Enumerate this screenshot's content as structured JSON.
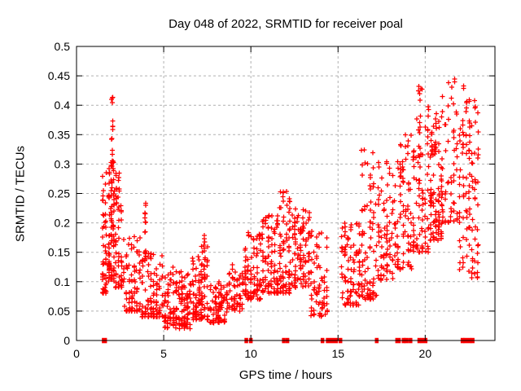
{
  "title": "Day 048 of 2022, SRMTID for receiver poal",
  "axes": {
    "xlabel": "GPS time / hours",
    "ylabel": "SRMTID / TECUs",
    "xlim": [
      0,
      24
    ],
    "ylim": [
      0,
      0.5
    ],
    "xticks": [
      0,
      5,
      10,
      15,
      20
    ],
    "xtick_labels": [
      "0",
      "5",
      "10",
      "15",
      "20"
    ],
    "yticks": [
      0,
      0.05,
      0.1,
      0.15,
      0.2,
      0.25,
      0.3,
      0.35,
      0.4,
      0.45,
      0.5
    ],
    "ytick_labels": [
      "0",
      "0.05",
      "0.1",
      "0.15",
      "0.2",
      "0.25",
      "0.3",
      "0.35",
      "0.4",
      "0.45",
      "0.5"
    ],
    "grid": true
  },
  "colors": {
    "marker": "#ff0000",
    "grid": "#b0b0b0",
    "frame": "#000000",
    "background": "#ffffff",
    "text": "#000000"
  },
  "chart_data": {
    "type": "scatter",
    "title": "Day 048 of 2022, SRMTID for receiver poal",
    "xlabel": "GPS time / hours",
    "ylabel": "SRMTID / TECUs",
    "xlim": [
      0,
      24
    ],
    "ylim": [
      0,
      0.5
    ],
    "marker": "plus",
    "marker_color": "#ff0000",
    "grid": true,
    "legend": "none",
    "seed": 48,
    "clusters_format": "[x_start_hr, x_end_hr, y_min_TECU, y_max_TECU, point_count, low_bias_power] — approximate density clusters reconstructing the ~1900 red '+' samples",
    "clusters": [
      [
        1.45,
        1.75,
        0.08,
        0.315,
        48,
        1.6
      ],
      [
        1.8,
        2.2,
        0.1,
        0.31,
        90,
        1.5
      ],
      [
        1.95,
        2.15,
        0.3,
        0.44,
        14,
        1.0
      ],
      [
        2.2,
        2.65,
        0.09,
        0.285,
        55,
        1.8
      ],
      [
        2.65,
        3.7,
        0.05,
        0.18,
        85,
        1.8
      ],
      [
        3.85,
        4.05,
        0.13,
        0.235,
        12,
        1.0
      ],
      [
        3.7,
        5.0,
        0.04,
        0.155,
        100,
        1.8
      ],
      [
        5.0,
        6.6,
        0.02,
        0.125,
        150,
        1.5
      ],
      [
        6.6,
        7.6,
        0.035,
        0.16,
        105,
        1.8
      ],
      [
        7.25,
        7.42,
        0.12,
        0.195,
        8,
        1.0
      ],
      [
        7.6,
        8.7,
        0.03,
        0.1,
        85,
        1.5
      ],
      [
        8.7,
        9.6,
        0.05,
        0.135,
        55,
        1.4
      ],
      [
        9.6,
        10.6,
        0.07,
        0.185,
        85,
        1.5
      ],
      [
        10.6,
        11.6,
        0.08,
        0.215,
        90,
        1.5
      ],
      [
        11.6,
        12.3,
        0.08,
        0.255,
        75,
        1.7
      ],
      [
        12.3,
        13.4,
        0.09,
        0.225,
        95,
        1.5
      ],
      [
        13.4,
        14.45,
        0.04,
        0.19,
        70,
        1.4
      ],
      [
        15.15,
        16.3,
        0.06,
        0.2,
        95,
        1.5
      ],
      [
        16.3,
        17.25,
        0.07,
        0.33,
        85,
        2.0
      ],
      [
        17.25,
        18.35,
        0.1,
        0.305,
        85,
        1.6
      ],
      [
        18.35,
        19.25,
        0.12,
        0.35,
        75,
        1.5
      ],
      [
        19.25,
        20.25,
        0.15,
        0.43,
        85,
        1.7
      ],
      [
        19.55,
        19.8,
        0.3,
        0.435,
        10,
        1.0
      ],
      [
        20.25,
        21.0,
        0.17,
        0.39,
        80,
        1.4
      ],
      [
        20.3,
        20.65,
        0.315,
        0.355,
        16,
        1.0
      ],
      [
        20.9,
        21.9,
        0.2,
        0.455,
        60,
        1.6
      ],
      [
        21.9,
        22.45,
        0.12,
        0.44,
        50,
        1.3
      ],
      [
        22.45,
        23.1,
        0.1,
        0.41,
        65,
        1.2
      ]
    ],
    "baseline_segments_hours": [
      [
        1.5,
        1.7
      ],
      [
        9.68,
        9.74
      ],
      [
        9.94,
        10.0
      ],
      [
        11.83,
        11.9
      ],
      [
        12.04,
        12.1
      ],
      [
        14.05,
        14.12
      ],
      [
        14.35,
        14.95
      ],
      [
        15.08,
        15.14
      ],
      [
        17.16,
        17.26
      ],
      [
        18.33,
        18.55
      ],
      [
        18.7,
        18.76
      ],
      [
        18.85,
        19.0
      ],
      [
        19.1,
        19.16
      ],
      [
        19.6,
        19.66
      ],
      [
        19.78,
        20.08
      ],
      [
        22.08,
        22.14
      ],
      [
        22.24,
        22.6
      ],
      [
        22.66,
        22.78
      ]
    ]
  }
}
